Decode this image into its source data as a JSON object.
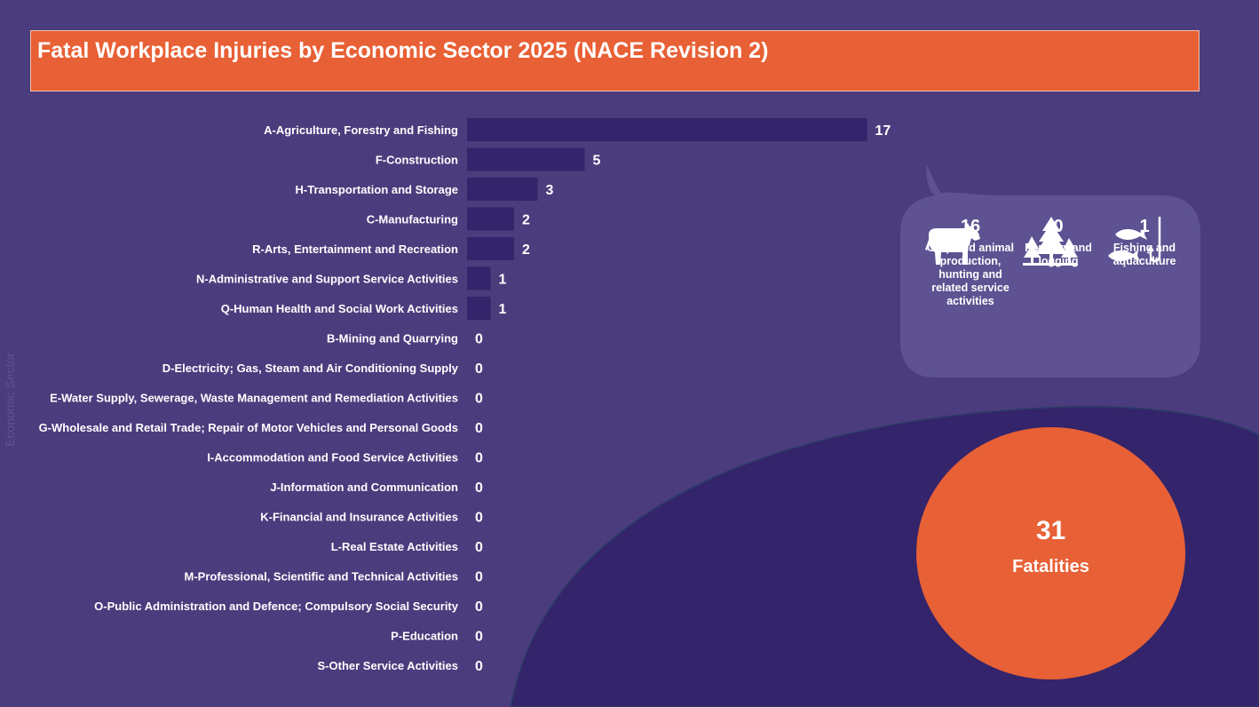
{
  "title": "Fatal Workplace Injuries by Economic Sector 2025 (NACE Revision 2)",
  "y_axis_title": "Economic Sector",
  "chart_data": {
    "type": "bar",
    "orientation": "horizontal",
    "title": "Fatal Workplace Injuries by Economic Sector 2025 (NACE Revision 2)",
    "ylabel": "Economic Sector",
    "categories": [
      "A-Agriculture, Forestry and Fishing",
      "F-Construction",
      "H-Transportation and Storage",
      "C-Manufacturing",
      "R-Arts, Entertainment and Recreation",
      "N-Administrative and Support Service Activities",
      "Q-Human Health and Social Work Activities",
      "B-Mining and Quarrying",
      "D-Electricity; Gas, Steam and Air Conditioning Supply",
      "E-Water Supply, Sewerage, Waste Management and Remediation Activities",
      "G-Wholesale and Retail Trade; Repair of Motor Vehicles and Personal Goods",
      "I-Accommodation and Food Service Activities",
      "J-Information and Communication",
      "K-Financial and Insurance Activities",
      "L-Real Estate Activities",
      "M-Professional, Scientific and Technical Activities",
      "O-Public Administration and Defence; Compulsory Social Security",
      "P-Education",
      "S-Other Service Activities"
    ],
    "values": [
      17,
      5,
      3,
      2,
      2,
      1,
      1,
      0,
      0,
      0,
      0,
      0,
      0,
      0,
      0,
      0,
      0,
      0,
      0
    ],
    "xlim": [
      0,
      17
    ],
    "bar_color": "#33246b",
    "grid": false,
    "data_labels": true
  },
  "agriculture_breakdown": [
    {
      "icon": "cow-icon",
      "value": "16",
      "label": "Crop and animal production, hunting and related service activities"
    },
    {
      "icon": "trees-icon",
      "value": "0",
      "label": "Forestry and logging"
    },
    {
      "icon": "fish-hook-icon",
      "value": "1",
      "label": "Fishing and aquaculture"
    }
  ],
  "total": {
    "value": "31",
    "label": "Fatalities"
  },
  "colors": {
    "background": "#4b3c7d",
    "dark_purple": "#33246b",
    "bubble": "#5e5292",
    "accent": "#e86035"
  }
}
